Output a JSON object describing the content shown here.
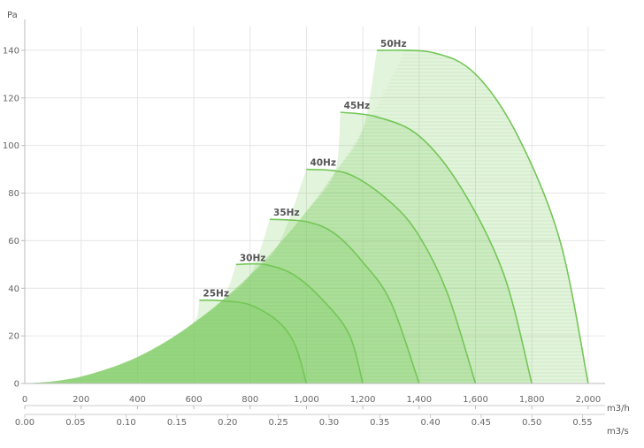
{
  "chart_data": {
    "type": "area",
    "title": "",
    "y_unit": "Pa",
    "x_unit": "m3/h",
    "x2_unit": "m3/s",
    "ylim": [
      0,
      150
    ],
    "xlim": [
      0,
      2060
    ],
    "x2lim": [
      0,
      0.5722
    ],
    "grid": true,
    "y_ticks": [
      0,
      20,
      40,
      60,
      80,
      100,
      120,
      140
    ],
    "x_ticks": [
      {
        "value": 0,
        "label": "0"
      },
      {
        "value": 200,
        "label": "200"
      },
      {
        "value": 400,
        "label": "400"
      },
      {
        "value": 600,
        "label": "600"
      },
      {
        "value": 800,
        "label": "800"
      },
      {
        "value": 1000,
        "label": "1,000"
      },
      {
        "value": 1200,
        "label": "1,200"
      },
      {
        "value": 1400,
        "label": "1,400"
      },
      {
        "value": 1600,
        "label": "1,600"
      },
      {
        "value": 1800,
        "label": "1,800"
      },
      {
        "value": 2000,
        "label": "2,000"
      }
    ],
    "x2_ticks": [
      {
        "value": 0.0,
        "label": "0.00"
      },
      {
        "value": 0.05,
        "label": "0.05"
      },
      {
        "value": 0.1,
        "label": "0.10"
      },
      {
        "value": 0.15,
        "label": "0.15"
      },
      {
        "value": 0.2,
        "label": "0.20"
      },
      {
        "value": 0.25,
        "label": "0.25"
      },
      {
        "value": 0.3,
        "label": "0.30"
      },
      {
        "value": 0.35,
        "label": "0.35"
      },
      {
        "value": 0.4,
        "label": "0.40"
      },
      {
        "value": 0.45,
        "label": "0.45"
      },
      {
        "value": 0.5,
        "label": "0.50"
      },
      {
        "value": 0.55,
        "label": "0.55"
      }
    ],
    "envelope": [
      [
        0,
        0
      ],
      [
        100,
        0.9
      ],
      [
        200,
        2.9
      ],
      [
        300,
        6.4
      ],
      [
        400,
        11.1
      ],
      [
        500,
        17.5
      ],
      [
        600,
        25.5
      ],
      [
        700,
        34.8
      ],
      [
        800,
        45.6
      ],
      [
        900,
        58.2
      ],
      [
        1000,
        72.3
      ],
      [
        1100,
        88.5
      ],
      [
        1200,
        107
      ],
      [
        1250,
        117
      ],
      [
        1300,
        128
      ],
      [
        1350,
        140
      ]
    ],
    "series": [
      {
        "name": "25Hz",
        "color": "#74c657",
        "points": [
          [
            620,
            35
          ],
          [
            700,
            34.8
          ],
          [
            800,
            33
          ],
          [
            900,
            26
          ],
          [
            960,
            16
          ],
          [
            1000,
            0
          ]
        ]
      },
      {
        "name": "30Hz",
        "color": "#74c657",
        "points": [
          [
            750,
            50
          ],
          [
            850,
            50
          ],
          [
            950,
            46
          ],
          [
            1050,
            36
          ],
          [
            1150,
            21
          ],
          [
            1200,
            0
          ]
        ]
      },
      {
        "name": "35Hz",
        "color": "#74c657",
        "points": [
          [
            870,
            69
          ],
          [
            1000,
            68
          ],
          [
            1100,
            63
          ],
          [
            1200,
            51
          ],
          [
            1300,
            34
          ],
          [
            1400,
            0
          ]
        ]
      },
      {
        "name": "40Hz",
        "color": "#74c657",
        "points": [
          [
            1000,
            90
          ],
          [
            1150,
            88
          ],
          [
            1300,
            76
          ],
          [
            1400,
            62
          ],
          [
            1500,
            38
          ],
          [
            1600,
            0
          ]
        ]
      },
      {
        "name": "45Hz",
        "color": "#74c657",
        "points": [
          [
            1120,
            114
          ],
          [
            1250,
            112
          ],
          [
            1400,
            104
          ],
          [
            1550,
            82
          ],
          [
            1700,
            46
          ],
          [
            1800,
            0
          ]
        ]
      },
      {
        "name": "50Hz",
        "color": "#74c657",
        "points": [
          [
            1250,
            140
          ],
          [
            1450,
            139
          ],
          [
            1600,
            130
          ],
          [
            1750,
            104
          ],
          [
            1900,
            60
          ],
          [
            2000,
            0
          ]
        ]
      }
    ]
  }
}
